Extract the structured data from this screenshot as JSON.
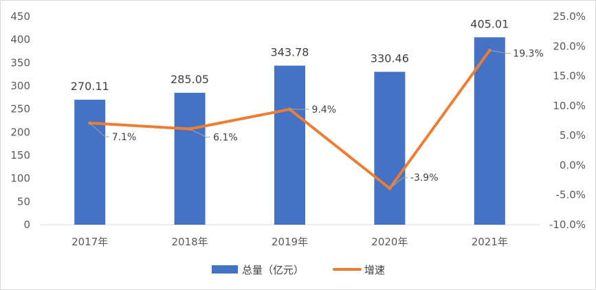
{
  "chart_data": {
    "type": "bar",
    "categories": [
      "2017年",
      "2018年",
      "2019年",
      "2020年",
      "2021年"
    ],
    "series": [
      {
        "name": "总量（亿元）",
        "type": "bar",
        "axis": "left",
        "values": [
          270.11,
          285.05,
          343.78,
          330.46,
          405.01
        ],
        "labels": [
          "270.11",
          "285.05",
          "343.78",
          "330.46",
          "405.01"
        ],
        "color": "#4472C4"
      },
      {
        "name": "增速",
        "type": "line",
        "axis": "right",
        "values": [
          7.1,
          6.1,
          9.4,
          -3.9,
          19.3
        ],
        "labels": [
          "7.1%",
          "6.1%",
          "9.4%",
          "-3.9%",
          "19.3%"
        ],
        "color": "#ED7D31"
      }
    ],
    "y_left": {
      "min": 0,
      "max": 450,
      "step": 50,
      "ticks": [
        "0",
        "50",
        "100",
        "150",
        "200",
        "250",
        "300",
        "350",
        "400",
        "450"
      ]
    },
    "y_right": {
      "min": -10,
      "max": 25,
      "step": 5,
      "ticks": [
        "-10.0%",
        "-5.0%",
        "0.0%",
        "5.0%",
        "10.0%",
        "15.0%",
        "20.0%",
        "25.0%"
      ]
    },
    "title": "",
    "xlabel": "",
    "ylabel": "",
    "grid": false,
    "legend": "bottom"
  }
}
